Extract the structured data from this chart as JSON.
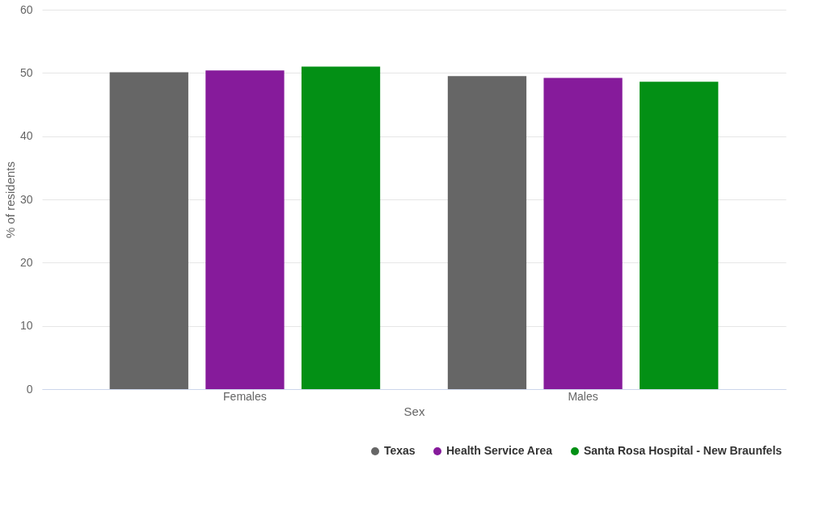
{
  "chart_data": {
    "type": "bar",
    "xlabel": "Sex",
    "ylabel": "% of residents",
    "categories": [
      "Females",
      "Males"
    ],
    "series": [
      {
        "name": "Texas",
        "color": "#666666",
        "values": [
          50.1,
          49.5
        ]
      },
      {
        "name": "Health Service Area",
        "color": "#861b9b",
        "values": [
          50.4,
          49.2
        ]
      },
      {
        "name": "Santa Rosa Hospital - New Braunfels",
        "color": "#039015",
        "values": [
          51.0,
          48.6
        ]
      }
    ],
    "ylim": [
      0,
      60
    ],
    "yticks": [
      0,
      10,
      20,
      30,
      40,
      50,
      60
    ],
    "grid": "y",
    "legend": "bottom right"
  }
}
